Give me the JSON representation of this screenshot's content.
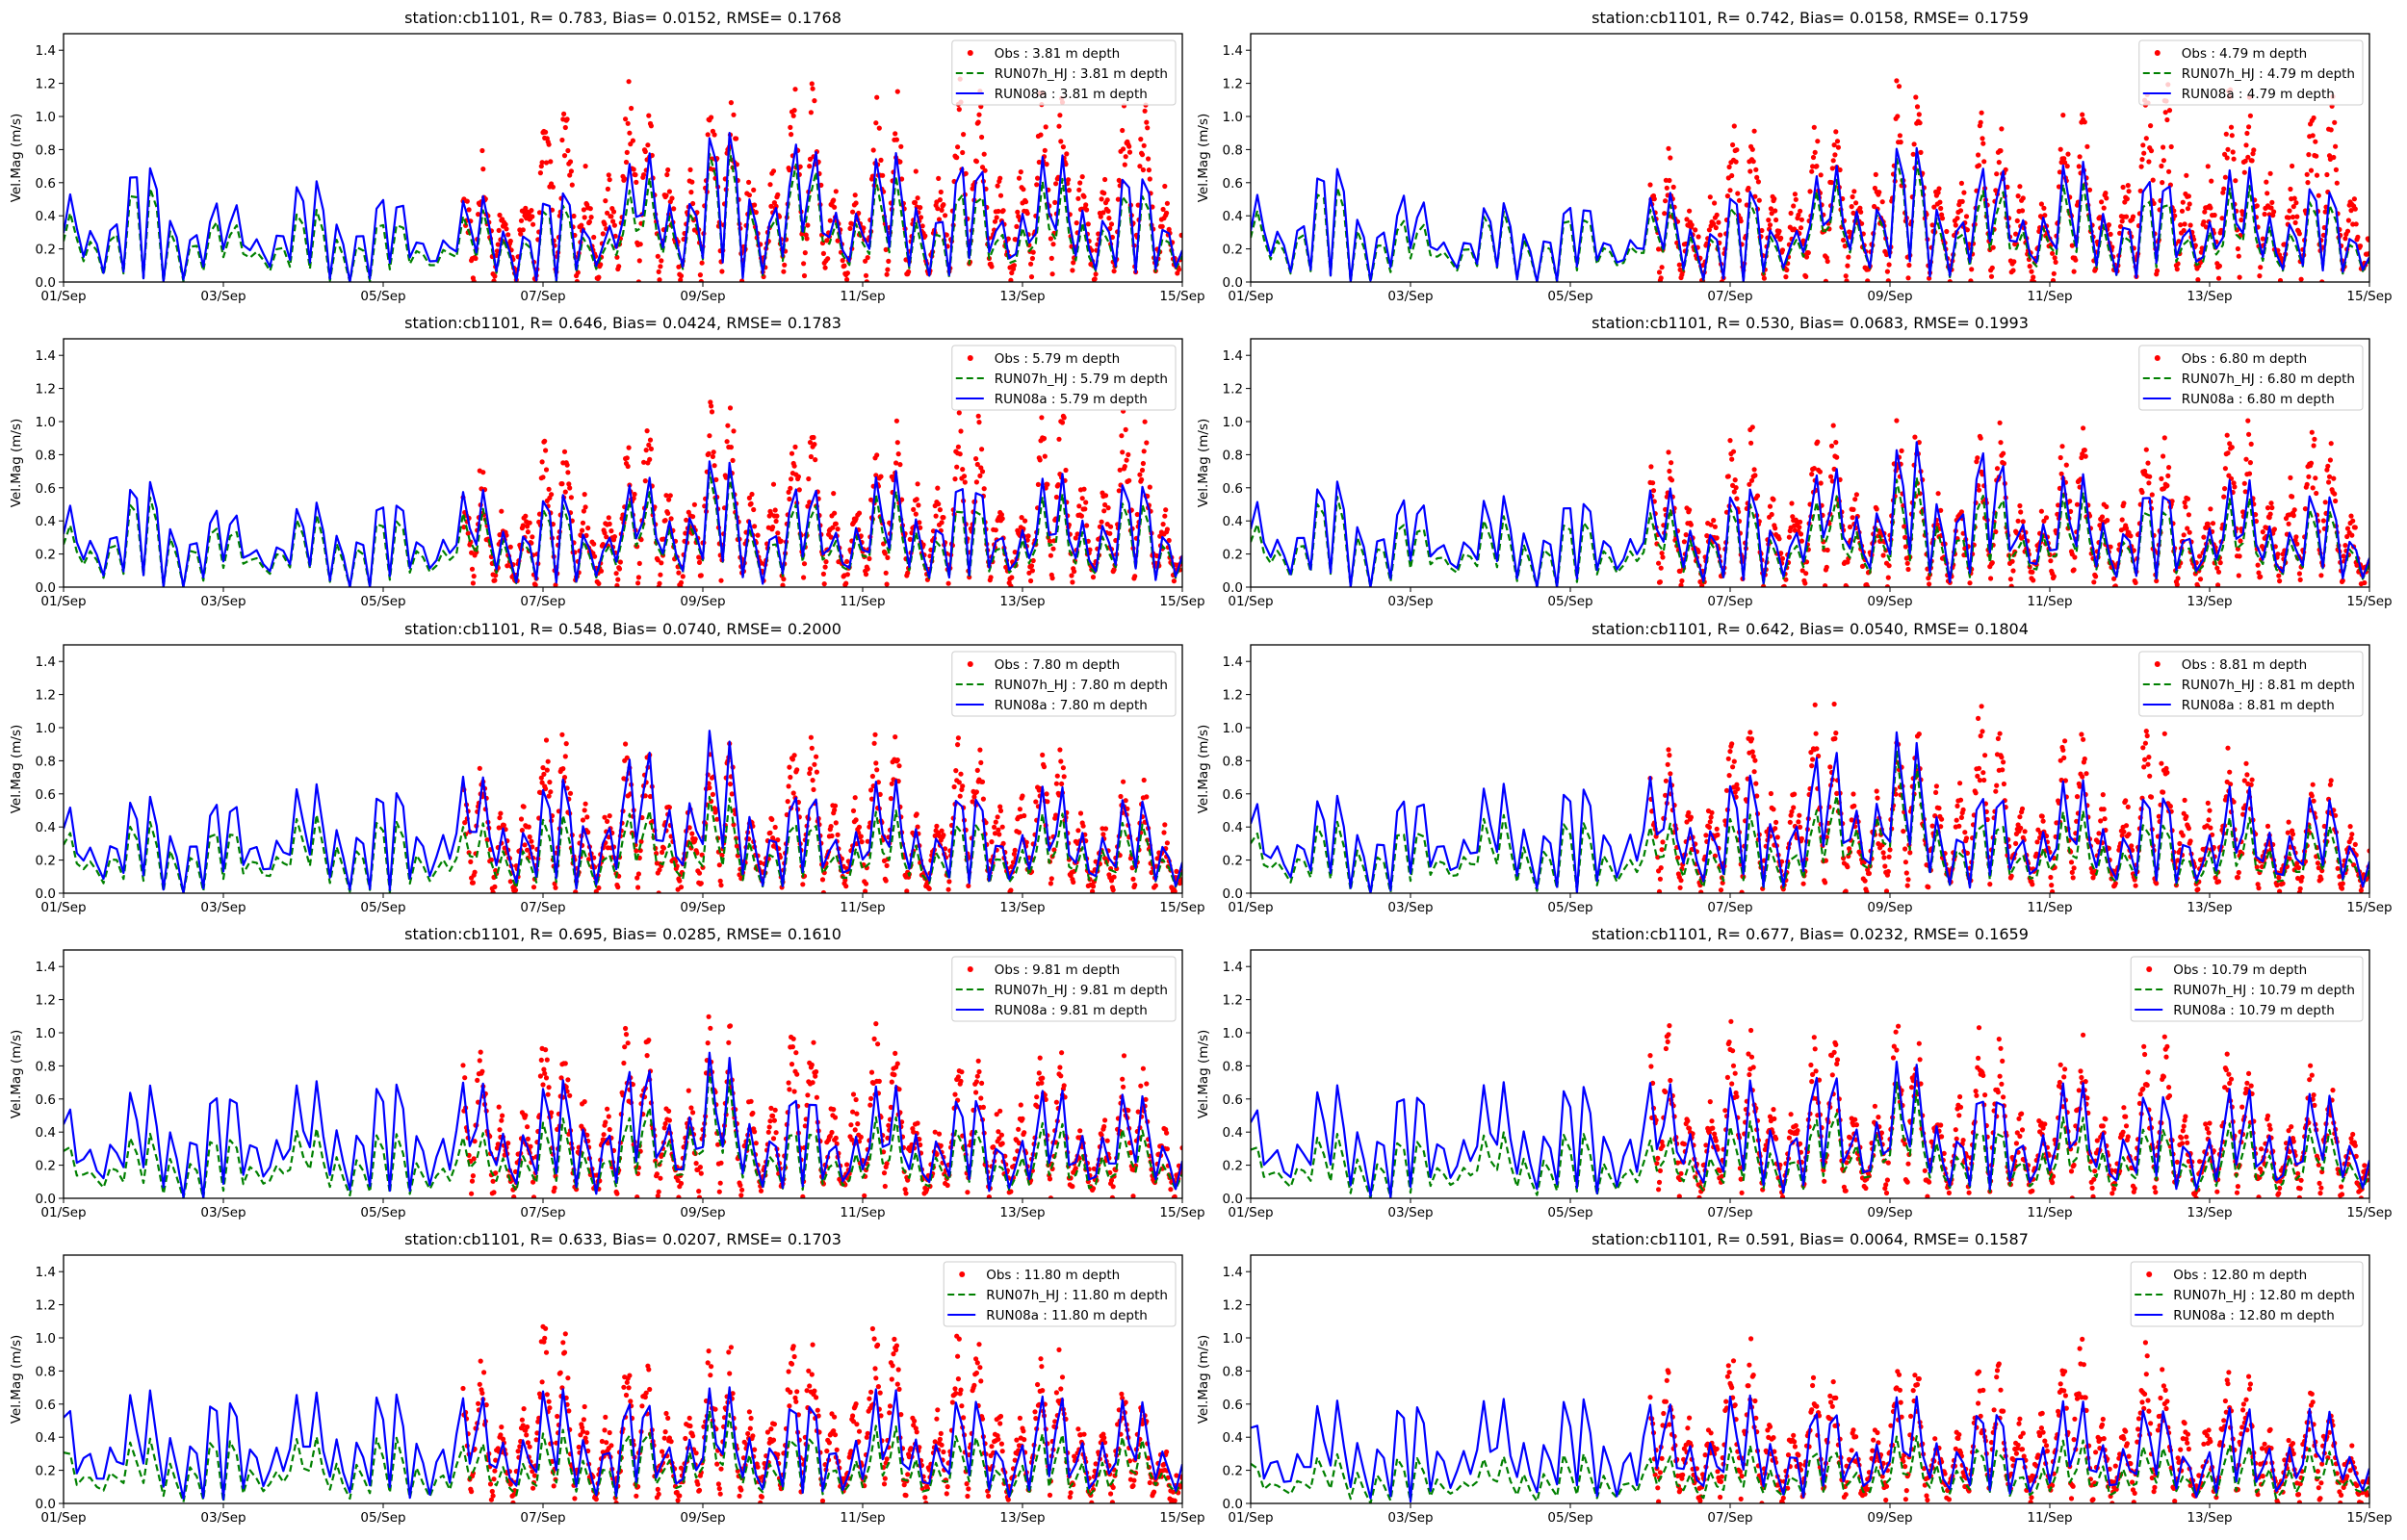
{
  "figure": {
    "station": "cb1101",
    "ylabel": "Vel.Mag (m/s)",
    "ylim": [
      0,
      1.5
    ],
    "yticks": [
      "0.0",
      "0.2",
      "0.4",
      "0.6",
      "0.8",
      "1.0",
      "1.2",
      "1.4"
    ],
    "xticks": [
      "01/Sep",
      "03/Sep",
      "05/Sep",
      "07/Sep",
      "09/Sep",
      "11/Sep",
      "13/Sep",
      "15/Sep"
    ],
    "colors": {
      "obs": "#ff0000",
      "run07": "#008000",
      "run08": "#0000ff",
      "axis": "#000000"
    }
  },
  "chart_data": [
    {
      "type": "line",
      "panel": "r1c1",
      "depth": "3.81",
      "title": "station:cb1101, R= 0.783, Bias= 0.0152, RMSE= 0.1768",
      "legend": [
        "Obs : 3.81 m depth",
        "RUN07h_HJ : 3.81 m depth",
        "RUN08a : 3.81 m depth"
      ],
      "legend_position": "top-right",
      "xlabel": "",
      "ylabel": "Vel.Mag (m/s)",
      "xlim": [
        "01/Sep",
        "15/Sep"
      ],
      "ylim": [
        0,
        1.5
      ],
      "stats": {
        "R": 0.783,
        "Bias": 0.0152,
        "RMSE": 0.1768
      },
      "daily_peak_RUN08a": [
        0.6,
        0.8,
        0.54,
        0.67,
        0.6,
        0.55,
        0.57,
        0.78,
        1.0,
        0.98,
        0.79,
        0.85,
        0.8,
        0.78,
        0.72
      ],
      "daily_peak_RUN07h_HJ": [
        0.48,
        0.65,
        0.42,
        0.47,
        0.43,
        0.45,
        0.5,
        0.6,
        0.88,
        0.85,
        0.66,
        0.66,
        0.63,
        0.64,
        0.6
      ],
      "daily_peak_Obs": [
        null,
        null,
        null,
        null,
        null,
        0.53,
        0.91,
        1.05,
        1.03,
        1.1,
        0.89,
        1.07,
        1.05,
        1.05,
        0.87
      ]
    },
    {
      "type": "line",
      "panel": "r1c2",
      "depth": "4.79",
      "title": "station:cb1101, R= 0.742, Bias= 0.0158, RMSE= 0.1759",
      "legend": [
        "Obs : 4.79 m depth",
        "RUN07h_HJ : 4.79 m depth",
        "RUN08a : 4.79 m depth"
      ],
      "legend_position": "top-right",
      "xlabel": "",
      "ylabel": "Vel.Mag (m/s)",
      "xlim": [
        "01/Sep",
        "15/Sep"
      ],
      "ylim": [
        0,
        1.5
      ],
      "stats": {
        "R": 0.742,
        "Bias": 0.0158,
        "RMSE": 0.1759
      },
      "daily_peak_RUN08a": [
        0.6,
        0.78,
        0.6,
        0.5,
        0.55,
        0.57,
        0.6,
        0.7,
        0.92,
        0.8,
        0.75,
        0.76,
        0.7,
        0.72,
        0.57
      ],
      "daily_peak_RUN07h_HJ": [
        0.5,
        0.65,
        0.43,
        0.45,
        0.46,
        0.49,
        0.52,
        0.6,
        0.85,
        0.65,
        0.62,
        0.62,
        0.58,
        0.6,
        0.5
      ],
      "daily_peak_Obs": [
        null,
        null,
        null,
        null,
        null,
        0.62,
        0.85,
        0.85,
        1.06,
        0.92,
        0.82,
        1.05,
        1.05,
        1.05,
        0.85
      ]
    },
    {
      "type": "line",
      "panel": "r2c1",
      "depth": "5.79",
      "title": "station:cb1101, R= 0.646, Bias= 0.0424, RMSE= 0.1783",
      "legend": [
        "Obs : 5.79 m depth",
        "RUN07h_HJ : 5.79 m depth",
        "RUN08a : 5.79 m depth"
      ],
      "legend_position": "top-right",
      "xlabel": "",
      "ylabel": "Vel.Mag (m/s)",
      "xlim": [
        "01/Sep",
        "15/Sep"
      ],
      "ylim": [
        0,
        1.5
      ],
      "stats": {
        "R": 0.646,
        "Bias": 0.0424,
        "RMSE": 0.1783
      },
      "daily_peak_RUN08a": [
        0.57,
        0.71,
        0.54,
        0.53,
        0.6,
        0.64,
        0.6,
        0.68,
        0.85,
        0.7,
        0.68,
        0.78,
        0.66,
        0.75,
        0.66
      ],
      "daily_peak_RUN07h_HJ": [
        0.44,
        0.6,
        0.42,
        0.46,
        0.47,
        0.5,
        0.53,
        0.58,
        0.77,
        0.6,
        0.58,
        0.6,
        0.55,
        0.6,
        0.55
      ],
      "daily_peak_Obs": [
        null,
        null,
        null,
        null,
        null,
        0.57,
        0.75,
        0.79,
        0.98,
        0.9,
        0.78,
        0.94,
        0.8,
        1.03,
        0.7
      ]
    },
    {
      "type": "line",
      "panel": "r2c2",
      "depth": "6.80",
      "title": "station:cb1101, R= 0.530, Bias= 0.0683, RMSE= 0.1993",
      "legend": [
        "Obs : 6.80 m depth",
        "RUN07h_HJ : 6.80 m depth",
        "RUN08a : 6.80 m depth"
      ],
      "legend_position": "top-right",
      "xlabel": "",
      "ylabel": "Vel.Mag (m/s)",
      "xlim": [
        "01/Sep",
        "15/Sep"
      ],
      "ylim": [
        0,
        1.5
      ],
      "stats": {
        "R": 0.53,
        "Bias": 0.0683,
        "RMSE": 0.1993
      },
      "daily_peak_RUN08a": [
        0.6,
        0.7,
        0.62,
        0.58,
        0.6,
        0.65,
        0.62,
        0.75,
        0.9,
        1.0,
        0.7,
        0.7,
        0.68,
        0.65,
        0.6
      ],
      "daily_peak_RUN07h_HJ": [
        0.45,
        0.6,
        0.45,
        0.45,
        0.45,
        0.5,
        0.53,
        0.58,
        0.7,
        0.68,
        0.58,
        0.58,
        0.55,
        0.55,
        0.5
      ],
      "daily_peak_Obs": [
        null,
        null,
        null,
        null,
        null,
        0.65,
        0.8,
        0.85,
        0.86,
        0.82,
        0.8,
        0.83,
        0.8,
        0.98,
        0.65
      ]
    },
    {
      "type": "line",
      "panel": "r3c1",
      "depth": "7.80",
      "title": "station:cb1101, R= 0.548, Bias= 0.0740, RMSE= 0.2000",
      "legend": [
        "Obs : 7.80 m depth",
        "RUN07h_HJ : 7.80 m depth",
        "RUN08a : 7.80 m depth"
      ],
      "legend_position": "top-right",
      "xlabel": "",
      "ylabel": "Vel.Mag (m/s)",
      "xlim": [
        "01/Sep",
        "15/Sep"
      ],
      "ylim": [
        0,
        1.5
      ],
      "stats": {
        "R": 0.548,
        "Bias": 0.074,
        "RMSE": 0.2
      },
      "daily_peak_RUN08a": [
        0.62,
        0.62,
        0.65,
        0.7,
        0.7,
        0.78,
        0.7,
        0.9,
        1.1,
        0.7,
        0.7,
        0.7,
        0.68,
        0.65,
        0.6
      ],
      "daily_peak_RUN07h_HJ": [
        0.45,
        0.45,
        0.45,
        0.5,
        0.5,
        0.45,
        0.48,
        0.55,
        0.62,
        0.52,
        0.5,
        0.5,
        0.5,
        0.48,
        0.45
      ],
      "daily_peak_Obs": [
        null,
        null,
        null,
        null,
        null,
        0.65,
        0.85,
        0.78,
        0.8,
        0.82,
        0.85,
        0.75,
        0.92,
        0.6,
        0.5
      ]
    },
    {
      "type": "line",
      "panel": "r3c2",
      "depth": "8.81",
      "title": "station:cb1101, R= 0.642, Bias= 0.0540, RMSE= 0.1804",
      "legend": [
        "Obs : 8.81 m depth",
        "RUN07h_HJ : 8.81 m depth",
        "RUN08a : 8.81 m depth"
      ],
      "legend_position": "top-right",
      "xlabel": "",
      "ylabel": "Vel.Mag (m/s)",
      "xlim": [
        "01/Sep",
        "15/Sep"
      ],
      "ylim": [
        0,
        1.5
      ],
      "stats": {
        "R": 0.642,
        "Bias": 0.054,
        "RMSE": 0.1804
      },
      "daily_peak_RUN08a": [
        0.65,
        0.62,
        0.68,
        0.7,
        0.72,
        0.78,
        0.72,
        0.92,
        1.08,
        0.7,
        0.7,
        0.7,
        0.68,
        0.66,
        0.6
      ],
      "daily_peak_RUN07h_HJ": [
        0.45,
        0.45,
        0.45,
        0.5,
        0.48,
        0.45,
        0.48,
        0.55,
        0.95,
        0.52,
        0.5,
        0.5,
        0.48,
        0.45,
        0.45
      ],
      "daily_peak_Obs": [
        null,
        null,
        null,
        null,
        null,
        0.7,
        0.88,
        0.95,
        0.88,
        1.0,
        0.8,
        0.85,
        0.8,
        0.62,
        0.55
      ]
    },
    {
      "type": "line",
      "panel": "r4c1",
      "depth": "9.81",
      "title": "station:cb1101, R= 0.695, Bias= 0.0285, RMSE= 0.1610",
      "legend": [
        "Obs : 9.81 m depth",
        "RUN07h_HJ : 9.81 m depth",
        "RUN08a : 9.81 m depth"
      ],
      "legend_position": "top-right",
      "xlabel": "",
      "ylabel": "Vel.Mag (m/s)",
      "xlim": [
        "01/Sep",
        "15/Sep"
      ],
      "ylim": [
        0,
        1.5
      ],
      "stats": {
        "R": 0.695,
        "Bias": 0.0285,
        "RMSE": 0.161
      },
      "daily_peak_RUN08a": [
        0.65,
        0.72,
        0.75,
        0.75,
        0.78,
        0.78,
        0.72,
        0.88,
        0.95,
        0.75,
        0.7,
        0.7,
        0.68,
        0.7,
        0.66
      ],
      "daily_peak_RUN07h_HJ": [
        0.4,
        0.4,
        0.42,
        0.45,
        0.42,
        0.42,
        0.48,
        0.55,
        0.85,
        0.5,
        0.5,
        0.48,
        0.48,
        0.45,
        0.45
      ],
      "daily_peak_Obs": [
        null,
        null,
        null,
        null,
        null,
        0.8,
        0.92,
        0.88,
        0.98,
        0.88,
        0.92,
        0.75,
        0.8,
        0.72,
        0.6
      ]
    },
    {
      "type": "line",
      "panel": "r4c2",
      "depth": "10.79",
      "title": "station:cb1101, R= 0.677, Bias= 0.0232, RMSE= 0.1659",
      "legend": [
        "Obs : 10.79 m depth",
        "RUN07h_HJ : 10.79 m depth",
        "RUN08a : 10.79 m depth"
      ],
      "legend_position": "top-right",
      "xlabel": "",
      "ylabel": "Vel.Mag (m/s)",
      "xlim": [
        "01/Sep",
        "15/Sep"
      ],
      "ylim": [
        0,
        1.5
      ],
      "stats": {
        "R": 0.677,
        "Bias": 0.0232,
        "RMSE": 0.1659
      },
      "daily_peak_RUN08a": [
        0.65,
        0.72,
        0.75,
        0.75,
        0.75,
        0.78,
        0.72,
        0.85,
        0.88,
        0.75,
        0.72,
        0.72,
        0.7,
        0.7,
        0.66
      ],
      "daily_peak_RUN07h_HJ": [
        0.4,
        0.4,
        0.4,
        0.42,
        0.42,
        0.4,
        0.45,
        0.55,
        0.75,
        0.5,
        0.5,
        0.48,
        0.48,
        0.45,
        0.45
      ],
      "daily_peak_Obs": [
        null,
        null,
        null,
        null,
        null,
        0.85,
        0.93,
        0.86,
        0.9,
        0.88,
        0.8,
        0.82,
        0.78,
        0.75,
        0.6
      ]
    },
    {
      "type": "line",
      "panel": "r5c1",
      "depth": "11.80",
      "title": "station:cb1101, R= 0.633, Bias= 0.0207, RMSE= 0.1703",
      "legend": [
        "Obs : 11.80 m depth",
        "RUN07h_HJ : 11.80 m depth",
        "RUN08a : 11.80 m depth"
      ],
      "legend_position": "top-right",
      "xlabel": "",
      "ylabel": "Vel.Mag (m/s)",
      "xlim": [
        "01/Sep",
        "15/Sep"
      ],
      "ylim": [
        0,
        1.5
      ],
      "stats": {
        "R": 0.633,
        "Bias": 0.0207,
        "RMSE": 0.1703
      },
      "daily_peak_RUN08a": [
        0.7,
        0.72,
        0.72,
        0.72,
        0.72,
        0.72,
        0.72,
        0.72,
        0.72,
        0.72,
        0.72,
        0.7,
        0.7,
        0.68,
        0.65
      ],
      "daily_peak_RUN07h_HJ": [
        0.4,
        0.4,
        0.43,
        0.43,
        0.42,
        0.4,
        0.43,
        0.5,
        0.58,
        0.48,
        0.48,
        0.46,
        0.45,
        0.43,
        0.4
      ],
      "daily_peak_Obs": [
        null,
        null,
        null,
        null,
        null,
        0.7,
        1.0,
        0.72,
        0.82,
        0.85,
        0.95,
        0.88,
        0.82,
        0.72,
        0.45
      ]
    },
    {
      "type": "line",
      "panel": "r5c2",
      "depth": "12.80",
      "title": "station:cb1101, R= 0.591, Bias= 0.0064, RMSE= 0.1587",
      "legend": [
        "Obs : 12.80 m depth",
        "RUN07h_HJ : 12.80 m depth",
        "RUN08a : 12.80 m depth"
      ],
      "legend_position": "top-right",
      "xlabel": "",
      "ylabel": "Vel.Mag (m/s)",
      "xlim": [
        "01/Sep",
        "15/Sep"
      ],
      "ylim": [
        0,
        1.5
      ],
      "stats": {
        "R": 0.591,
        "Bias": 0.0064,
        "RMSE": 0.1587
      },
      "daily_peak_RUN08a": [
        0.6,
        0.65,
        0.68,
        0.68,
        0.68,
        0.68,
        0.68,
        0.66,
        0.66,
        0.66,
        0.64,
        0.64,
        0.62,
        0.62,
        0.58
      ],
      "daily_peak_RUN07h_HJ": [
        0.3,
        0.3,
        0.3,
        0.3,
        0.3,
        0.32,
        0.33,
        0.38,
        0.4,
        0.4,
        0.38,
        0.38,
        0.38,
        0.35,
        0.32
      ],
      "daily_peak_Obs": [
        null,
        null,
        null,
        null,
        null,
        0.65,
        0.88,
        0.68,
        0.72,
        0.7,
        0.85,
        0.8,
        0.72,
        0.65,
        0.4
      ]
    }
  ]
}
